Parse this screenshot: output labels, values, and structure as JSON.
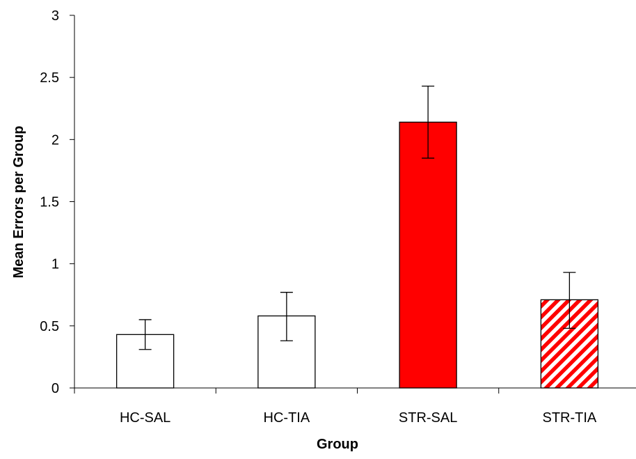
{
  "chart_data": {
    "type": "bar",
    "categories": [
      "HC-SAL",
      "HC-TIA",
      "STR-SAL",
      "STR-TIA"
    ],
    "values": [
      0.43,
      0.58,
      2.14,
      0.71
    ],
    "error_bars": [
      {
        "low": 0.31,
        "high": 0.55
      },
      {
        "low": 0.38,
        "high": 0.77
      },
      {
        "low": 1.85,
        "high": 2.43
      },
      {
        "low": 0.48,
        "high": 0.93
      }
    ],
    "bar_styles": [
      {
        "fill": "white",
        "color": "#ffffff"
      },
      {
        "fill": "white",
        "color": "#ffffff"
      },
      {
        "fill": "solid",
        "color": "#ff0000"
      },
      {
        "fill": "diagonal-stripes",
        "color": "#ff0000"
      }
    ],
    "xlabel": "Group",
    "ylabel": "Mean Errors per Group",
    "ylim": [
      0,
      3
    ],
    "yticks": [
      0,
      0.5,
      1,
      1.5,
      2,
      2.5,
      3
    ],
    "ytick_labels": [
      "0",
      "0.5",
      "1",
      "1.5",
      "2",
      "2.5",
      "3"
    ],
    "grid": false,
    "legend": "none"
  }
}
